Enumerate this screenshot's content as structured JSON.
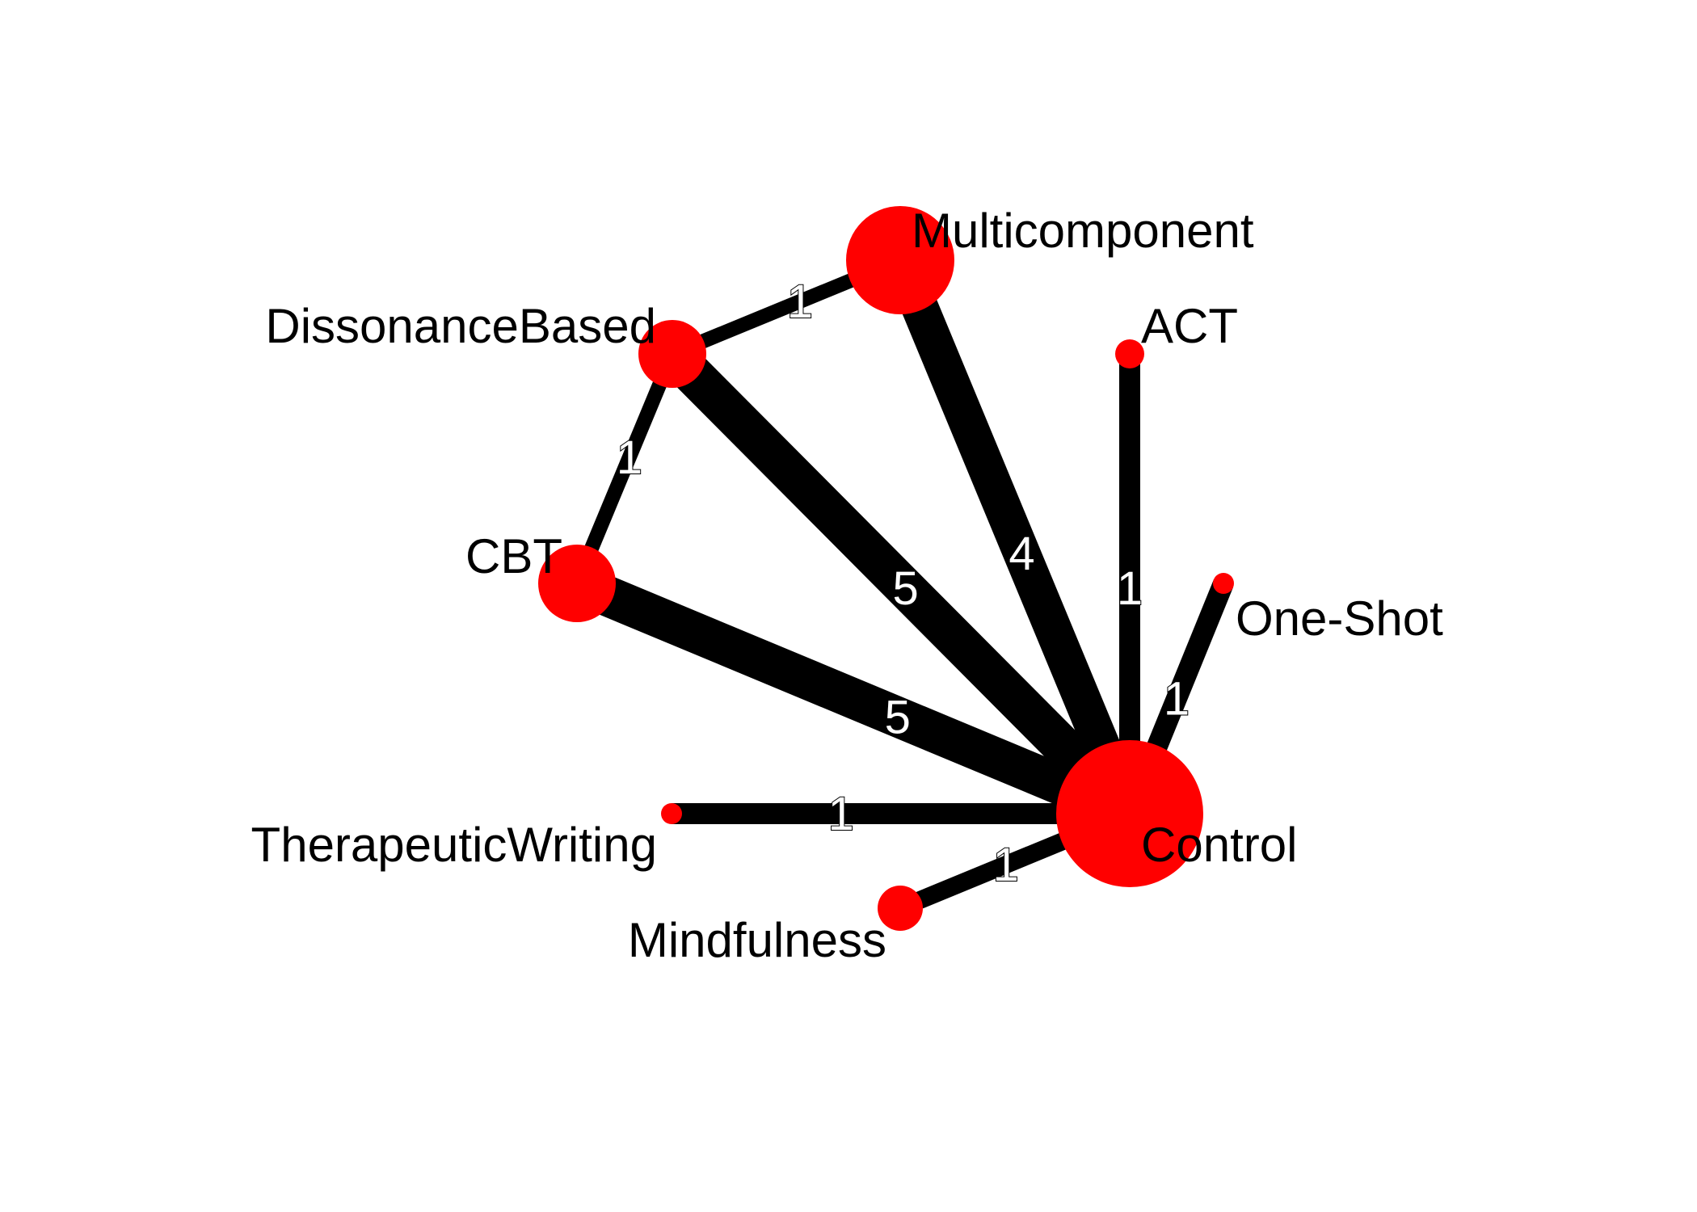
{
  "network": {
    "colors": {
      "node": "#ff0000",
      "edge": "#000000",
      "edge_label_fill": "#ffffff",
      "edge_label_outline": "#000000",
      "background": "#ffffff"
    },
    "nodes": [
      {
        "id": "multicomponent",
        "label": "Multicomponent"
      },
      {
        "id": "act",
        "label": "ACT"
      },
      {
        "id": "dissonance",
        "label": "DissonanceBased"
      },
      {
        "id": "cbt",
        "label": "CBT"
      },
      {
        "id": "oneshot",
        "label": "One-Shot"
      },
      {
        "id": "writing",
        "label": "TherapeuticWriting"
      },
      {
        "id": "control",
        "label": "Control"
      },
      {
        "id": "mindfulness",
        "label": "Mindfulness"
      }
    ],
    "edges": [
      {
        "from": "dissonance",
        "to": "multicomponent",
        "count": "1"
      },
      {
        "from": "dissonance",
        "to": "cbt",
        "count": "1"
      },
      {
        "from": "dissonance",
        "to": "control",
        "count": "5"
      },
      {
        "from": "multicomponent",
        "to": "control",
        "count": "4"
      },
      {
        "from": "act",
        "to": "control",
        "count": "1"
      },
      {
        "from": "cbt",
        "to": "control",
        "count": "5"
      },
      {
        "from": "oneshot",
        "to": "control",
        "count": "1"
      },
      {
        "from": "writing",
        "to": "control",
        "count": "1"
      },
      {
        "from": "mindfulness",
        "to": "control",
        "count": "1"
      }
    ]
  }
}
